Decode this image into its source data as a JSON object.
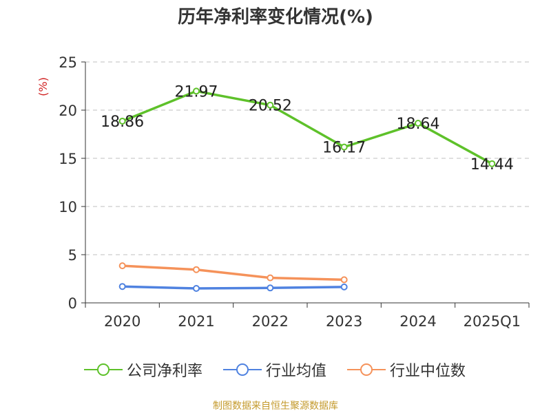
{
  "chart_data": {
    "type": "line",
    "title": "历年净利率变化情况(%)",
    "ylabel": "(%)",
    "xlabel": "",
    "categories": [
      "2020",
      "2021",
      "2022",
      "2023",
      "2024",
      "2025Q1"
    ],
    "ylim": [
      0,
      25
    ],
    "yticks": [
      "0",
      "5",
      "10",
      "15",
      "20",
      "25"
    ],
    "grid": true,
    "legend_position": "bottom",
    "series": [
      {
        "name": "公司净利率",
        "color": "#5ec12a",
        "values": [
          18.86,
          21.97,
          20.52,
          16.17,
          18.64,
          14.44
        ],
        "labels": [
          "18.86",
          "21.97",
          "20.52",
          "16.17",
          "18.64",
          "14.44"
        ]
      },
      {
        "name": "行业均值",
        "color": "#4f82e0",
        "values": [
          1.7,
          1.5,
          1.55,
          1.65,
          null,
          null
        ]
      },
      {
        "name": "行业中位数",
        "color": "#f5925a",
        "values": [
          3.85,
          3.45,
          2.6,
          2.4,
          null,
          null
        ]
      }
    ]
  },
  "source_note": "制图数据来自恒生聚源数据库",
  "colors": {
    "axis": "#333333",
    "grid": "#cccccc",
    "ylabel": "#d02020"
  }
}
